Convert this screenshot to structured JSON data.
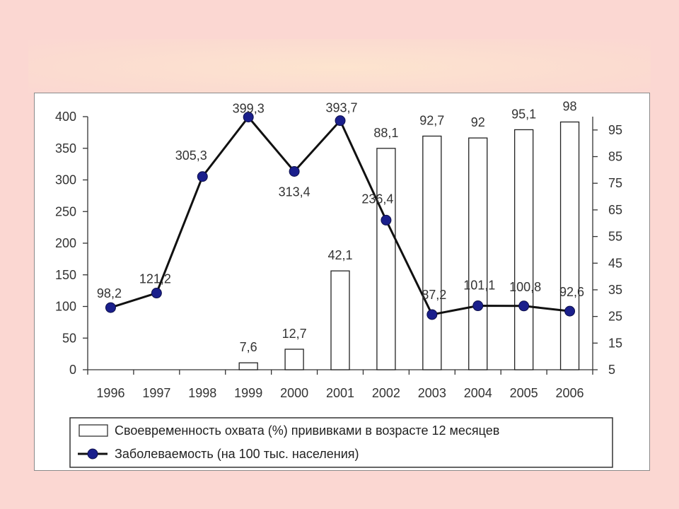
{
  "chart_data": {
    "type": "bar+line",
    "categories": [
      "1996",
      "1997",
      "1998",
      "1999",
      "2000",
      "2001",
      "2002",
      "2003",
      "2004",
      "2005",
      "2006"
    ],
    "series": [
      {
        "name": "Своевременность охвата  (%) прививками в возрасте 12 месяцев",
        "kind": "bar",
        "axis": "right",
        "values": [
          null,
          null,
          null,
          7.6,
          12.7,
          42.1,
          88.1,
          92.7,
          92,
          95.1,
          98
        ],
        "labels": [
          "",
          "",
          "",
          "7,6",
          "12,7",
          "42,1",
          "88,1",
          "92,7",
          "92",
          "95,1",
          "98"
        ],
        "color": "#ffffff"
      },
      {
        "name": "Заболеваемость (на 100 тыс. населения)",
        "kind": "line",
        "axis": "left",
        "values": [
          98.2,
          121.2,
          305.3,
          399.3,
          313.4,
          393.7,
          236.4,
          87.2,
          101.1,
          100.8,
          92.6
        ],
        "labels": [
          "98,2",
          "121,2",
          "305,3",
          "399,3",
          "313,4",
          "393,7",
          "236,4",
          "87,2",
          "101,1",
          "100,8",
          "92,6"
        ],
        "color": "#1a1f8c"
      }
    ],
    "y_left": {
      "range": [
        0,
        400
      ],
      "ticks": [
        "0",
        "50",
        "100",
        "150",
        "200",
        "250",
        "300",
        "350",
        "400"
      ]
    },
    "y_right": {
      "range": [
        5,
        100
      ],
      "ticks": [
        "5",
        "15",
        "25",
        "35",
        "45",
        "55",
        "65",
        "75",
        "85",
        "95"
      ]
    },
    "grid": false,
    "legend_placement": "bottom"
  }
}
